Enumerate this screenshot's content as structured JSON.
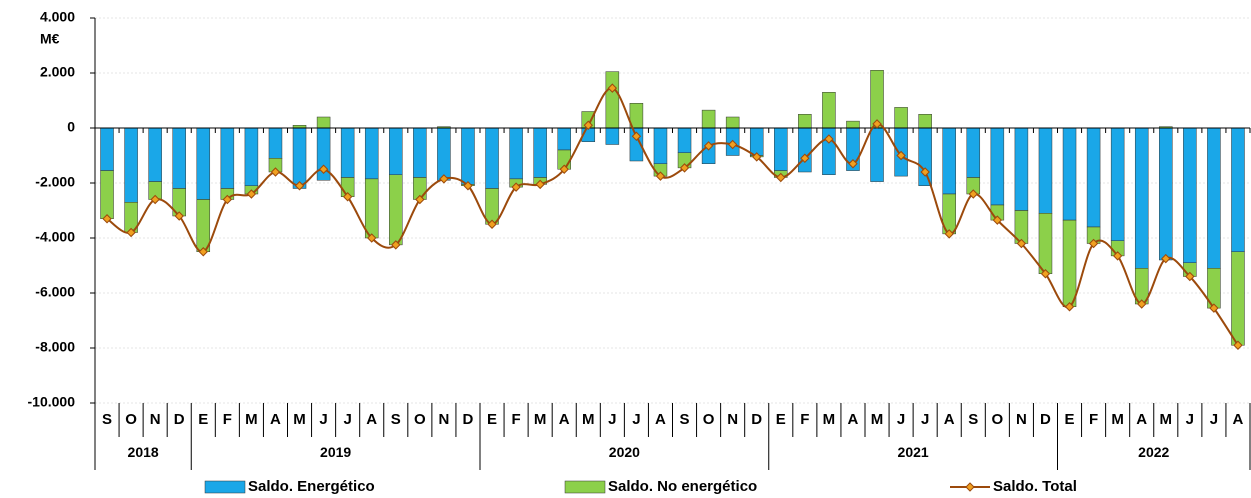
{
  "chart_data": {
    "type": "stacked-bar-line",
    "y_unit": "M€",
    "categories": [
      "S",
      "O",
      "N",
      "D",
      "E",
      "F",
      "M",
      "A",
      "M",
      "J",
      "J",
      "A",
      "S",
      "O",
      "N",
      "D",
      "E",
      "F",
      "M",
      "A",
      "M",
      "J",
      "J",
      "A",
      "S",
      "O",
      "N",
      "D",
      "E",
      "F",
      "M",
      "A",
      "M",
      "J",
      "J",
      "A",
      "S",
      "O",
      "N",
      "D",
      "E",
      "F",
      "M",
      "A",
      "M",
      "J",
      "J",
      "A"
    ],
    "year_groups": [
      {
        "label": "2018",
        "months": 4
      },
      {
        "label": "2019",
        "months": 12
      },
      {
        "label": "2020",
        "months": 12
      },
      {
        "label": "2021",
        "months": 12
      },
      {
        "label": "2022",
        "months": 8
      }
    ],
    "ylim": [
      -10000,
      4000
    ],
    "yticks": [
      {
        "value": -10000,
        "label": "-10.000"
      },
      {
        "value": -8000,
        "label": "-8.000"
      },
      {
        "value": -6000,
        "label": "-6.000"
      },
      {
        "value": -4000,
        "label": "-4.000"
      },
      {
        "value": -2000,
        "label": "-2.000"
      },
      0,
      {
        "value": 2000,
        "label": "2.000"
      },
      {
        "value": 4000,
        "label": "4.000"
      }
    ],
    "grid": true,
    "series": [
      {
        "name": "Saldo. Energético",
        "color": "#1aa7e8",
        "kind": "bar",
        "values": [
          -1550,
          -2700,
          -1950,
          -2200,
          -2600,
          -2200,
          -2100,
          -1100,
          -2200,
          -1900,
          -1800,
          -1850,
          -1700,
          -1800,
          -1900,
          -2050,
          -2200,
          -1850,
          -1800,
          -800,
          -500,
          -600,
          -1200,
          -1300,
          -900,
          -1300,
          -1000,
          -1000,
          -1550,
          -1600,
          -1700,
          -1550,
          -1950,
          -1750,
          -2100,
          -2400,
          -1800,
          -2800,
          -3000,
          -3100,
          -3350,
          -3600,
          -4100,
          -5100,
          -4800,
          -4900,
          -5100,
          -4500
        ]
      },
      {
        "name": "Saldo. No energético",
        "color": "#8cd04a",
        "kind": "bar",
        "values": [
          -1750,
          -1100,
          -650,
          -1000,
          -1900,
          -400,
          -300,
          -500,
          100,
          400,
          -700,
          -2150,
          -2550,
          -800,
          50,
          -50,
          -1300,
          -300,
          -250,
          -700,
          600,
          2050,
          900,
          -450,
          -550,
          650,
          400,
          -50,
          -250,
          500,
          1300,
          250,
          2100,
          750,
          500,
          -1450,
          -600,
          -550,
          -1200,
          -2200,
          -3150,
          -600,
          -550,
          -1300,
          50,
          -500,
          -1450,
          -3400
        ]
      },
      {
        "name": "Saldo. Total",
        "color": "#9c4a0c",
        "marker_color": "#f0a020",
        "kind": "line",
        "values": [
          -3300,
          -3800,
          -2600,
          -3200,
          -4500,
          -2600,
          -2400,
          -1600,
          -2100,
          -1500,
          -2500,
          -4000,
          -4250,
          -2600,
          -1850,
          -2100,
          -3500,
          -2150,
          -2050,
          -1500,
          100,
          1450,
          -300,
          -1750,
          -1450,
          -650,
          -600,
          -1050,
          -1800,
          -1100,
          -400,
          -1300,
          150,
          -1000,
          -1600,
          -3850,
          -2400,
          -3350,
          -4200,
          -5300,
          -6500,
          -4200,
          -4650,
          -6400,
          -4750,
          -5400,
          -6550,
          -7900
        ]
      }
    ]
  }
}
